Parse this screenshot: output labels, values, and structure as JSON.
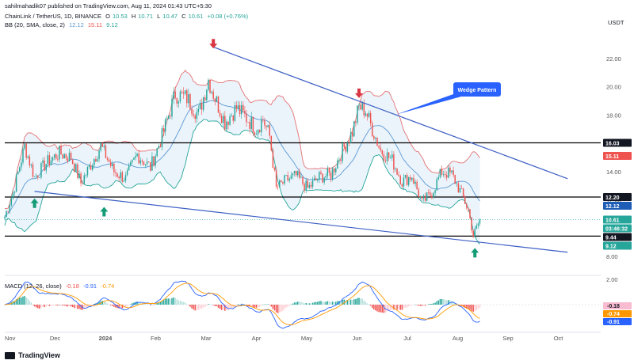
{
  "header": {
    "published": "sahilmahadik07 published on TradingView.com, Aug 11, 2024 01:43 UTC+5:30",
    "symbol": "ChainLink / TetherUS, 1D, BINANCE",
    "o_label": "O",
    "o": "10.53",
    "h_label": "H",
    "h": "10.71",
    "l_label": "L",
    "l": "10.47",
    "c_label": "C",
    "c": "10.61",
    "change": "+0.08 (+0.76%)",
    "bb_label": "BB (20, SMA, close, 2)",
    "bb_values": [
      "12.12",
      "15.11",
      "9.12"
    ],
    "currency": "USDT"
  },
  "macd_header": {
    "label": "MACD (12, 26, close)",
    "values": [
      "-0.18",
      "-0.91",
      "-0.74"
    ]
  },
  "brand": "TradingView",
  "annotation": {
    "text": "Wedge Pattern"
  },
  "colors": {
    "up": "#26a69a",
    "down": "#ef5350",
    "bb_upper": "#e57373",
    "bb_lower": "#26a69a",
    "bb_basis": "#5b9bd5",
    "trend": "#3d5fc4",
    "macd": "#2962ff",
    "signal": "#ff9800",
    "arrow_up": "#139b76",
    "arrow_down": "#d93542"
  },
  "chart_data": {
    "type": "candlestick",
    "x_axis": {
      "ticks": [
        "Nov",
        "Dec",
        "2024",
        "Feb",
        "Mar",
        "Apr",
        "May",
        "Jun",
        "Jul",
        "Aug",
        "Sep",
        "Oct"
      ]
    },
    "y_axis": {
      "ticks": [
        22.0,
        20.0,
        18.0,
        16.0,
        14.0,
        12.0,
        10.0,
        8.0
      ],
      "range": [
        7.0,
        24.0
      ]
    },
    "ohlc_keypoints": [
      {
        "t": 0,
        "c": 10.8
      },
      {
        "t": 5,
        "c": 12.5
      },
      {
        "t": 12,
        "c": 15.8
      },
      {
        "t": 18,
        "c": 13.6
      },
      {
        "t": 25,
        "c": 14.6
      },
      {
        "t": 33,
        "c": 15.3
      },
      {
        "t": 40,
        "c": 15.0
      },
      {
        "t": 46,
        "c": 13.2
      },
      {
        "t": 52,
        "c": 14.5
      },
      {
        "t": 58,
        "c": 15.8
      },
      {
        "t": 66,
        "c": 14.0
      },
      {
        "t": 73,
        "c": 13.5
      },
      {
        "t": 80,
        "c": 15.2
      },
      {
        "t": 88,
        "c": 14.3
      },
      {
        "t": 95,
        "c": 16.5
      },
      {
        "t": 103,
        "c": 19.5
      },
      {
        "t": 110,
        "c": 19.2
      },
      {
        "t": 117,
        "c": 18.0
      },
      {
        "t": 123,
        "c": 20.5
      },
      {
        "t": 127,
        "c": 19.2
      },
      {
        "t": 133,
        "c": 17.5
      },
      {
        "t": 140,
        "c": 18.5
      },
      {
        "t": 146,
        "c": 17.8
      },
      {
        "t": 152,
        "c": 17.0
      },
      {
        "t": 156,
        "c": 17.7
      },
      {
        "t": 160,
        "c": 16.5
      },
      {
        "t": 164,
        "c": 12.8
      },
      {
        "t": 170,
        "c": 13.4
      },
      {
        "t": 176,
        "c": 13.7
      },
      {
        "t": 183,
        "c": 12.8
      },
      {
        "t": 190,
        "c": 13.6
      },
      {
        "t": 197,
        "c": 13.8
      },
      {
        "t": 204,
        "c": 15.5
      },
      {
        "t": 210,
        "c": 16.8
      },
      {
        "t": 214,
        "c": 18.6
      },
      {
        "t": 218,
        "c": 18.3
      },
      {
        "t": 222,
        "c": 17.0
      },
      {
        "t": 227,
        "c": 15.5
      },
      {
        "t": 234,
        "c": 14.8
      },
      {
        "t": 240,
        "c": 13.3
      },
      {
        "t": 246,
        "c": 13.7
      },
      {
        "t": 252,
        "c": 11.8
      },
      {
        "t": 258,
        "c": 12.5
      },
      {
        "t": 264,
        "c": 14.0
      },
      {
        "t": 270,
        "c": 13.8
      },
      {
        "t": 276,
        "c": 12.4
      },
      {
        "t": 280,
        "c": 11.3
      },
      {
        "t": 283,
        "c": 9.5
      },
      {
        "t": 285,
        "c": 10.0
      },
      {
        "t": 287,
        "c": 10.61
      }
    ],
    "horizontal_levels": [
      16.03,
      12.2,
      9.44
    ],
    "price_labels": [
      {
        "value": 16.03,
        "text": "16.03",
        "style": "level"
      },
      {
        "value": 15.11,
        "text": "15.11",
        "style": "bb_upper"
      },
      {
        "value": 12.2,
        "text": "12.20",
        "style": "level"
      },
      {
        "value": 12.12,
        "text": "12.12",
        "style": "bb_basis"
      },
      {
        "value": 10.61,
        "text": "10.61",
        "style": "last"
      },
      {
        "value": 10.1,
        "text": "03:46:32",
        "style": "countdown"
      },
      {
        "value": 9.44,
        "text": "9.44",
        "style": "level"
      },
      {
        "value": 9.12,
        "text": "9.12",
        "style": "bb_lower"
      }
    ],
    "trendlines": [
      {
        "name": "upper",
        "from": {
          "t": 126,
          "price": 22.8
        },
        "to": {
          "t": 340,
          "price": 13.5
        }
      },
      {
        "name": "lower",
        "from": {
          "t": 18,
          "price": 12.6
        },
        "to": {
          "t": 340,
          "price": 8.3
        }
      }
    ],
    "markers": [
      {
        "type": "up",
        "t": 18,
        "price": 12.1
      },
      {
        "type": "up",
        "t": 60,
        "price": 11.5
      },
      {
        "type": "down",
        "t": 126,
        "price": 22.7
      },
      {
        "type": "down",
        "t": 214,
        "price": 19.2
      },
      {
        "type": "up",
        "t": 284,
        "price": 8.6
      }
    ],
    "bollinger": {
      "period": 20,
      "mult": 2
    },
    "macd": {
      "values": {
        "histogram": -0.18,
        "macd": -0.91,
        "signal": -0.74
      },
      "axis_ticks": [
        2.0
      ],
      "labels": [
        {
          "value": -0.18,
          "text": "-0.18",
          "style": "hist"
        },
        {
          "value": -0.74,
          "text": "-0.74",
          "style": "signal"
        },
        {
          "value": -0.91,
          "text": "-0.91",
          "style": "macd"
        }
      ]
    }
  }
}
